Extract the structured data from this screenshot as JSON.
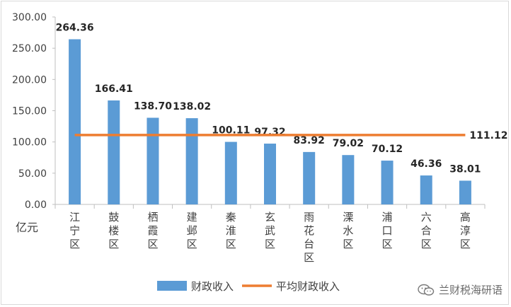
{
  "chart_data": {
    "type": "bar",
    "ylabel": "亿元",
    "ylim": [
      0,
      300
    ],
    "yticks": [
      "0.00",
      "50.00",
      "100.00",
      "150.00",
      "200.00",
      "250.00",
      "300.00"
    ],
    "categories": [
      "江宁区",
      "鼓楼区",
      "栖霞区",
      "建邺区",
      "秦淮区",
      "玄武区",
      "雨花台区",
      "溧水区",
      "浦口区",
      "六合区",
      "高淳区"
    ],
    "series": [
      {
        "name": "财政收入",
        "type": "bar",
        "color": "#5b9bd5",
        "values": [
          264.36,
          166.41,
          138.7,
          138.02,
          100.11,
          97.32,
          83.92,
          79.02,
          70.12,
          46.36,
          38.01
        ],
        "labels": [
          "264.36",
          "166.41",
          "138.70",
          "138.02",
          "100.11",
          "97.32",
          "83.92",
          "79.02",
          "70.12",
          "46.36",
          "38.01"
        ]
      },
      {
        "name": "平均财政收入",
        "type": "line",
        "color": "#ed7d31",
        "value": 111.12,
        "label": "111.12"
      }
    ],
    "grid": false,
    "legend_position": "bottom"
  },
  "watermark": {
    "text": "兰财税海研语",
    "icon": "wechat-icon"
  }
}
